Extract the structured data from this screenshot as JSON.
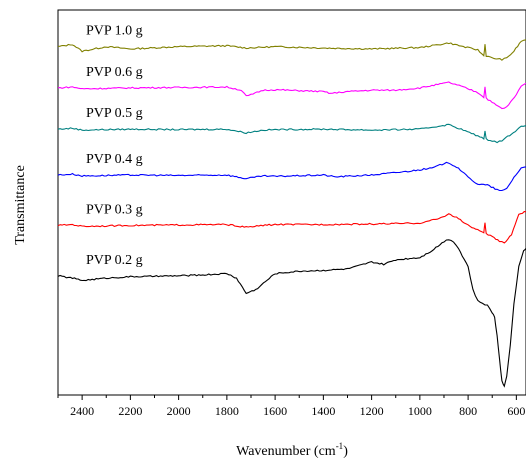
{
  "chart_data": {
    "type": "line",
    "xlabel": "Wavenumber (cm",
    "xlabel_sup": "-1",
    "xlabel_close": ")",
    "ylabel": "Transmittance",
    "xlim": [
      2500,
      560
    ],
    "x_reversed": true,
    "y_ticks": false,
    "grid": false,
    "legend": "inline labels above each trace",
    "x_ticks": [
      2400,
      2200,
      2000,
      1800,
      1600,
      1400,
      1200,
      1000,
      800,
      600
    ],
    "x_tick_labels": [
      "2400",
      "2200",
      "2000",
      "1800",
      "1600",
      "1400",
      "1200",
      "1000",
      "800",
      "600"
    ],
    "series": [
      {
        "name": "PVP 1.0 g",
        "color": "#808000",
        "baseline": 5.0,
        "points": [
          [
            2500,
            5.0
          ],
          [
            2440,
            5.05
          ],
          [
            2400,
            4.9
          ],
          [
            2300,
            5.0
          ],
          [
            2200,
            4.95
          ],
          [
            2000,
            5.0
          ],
          [
            1800,
            5.02
          ],
          [
            1720,
            4.97
          ],
          [
            1600,
            5.0
          ],
          [
            1400,
            4.97
          ],
          [
            1200,
            4.95
          ],
          [
            1000,
            4.98
          ],
          [
            880,
            5.08
          ],
          [
            820,
            5.0
          ],
          [
            760,
            4.93
          ],
          [
            735,
            4.8
          ],
          [
            730,
            5.05
          ],
          [
            725,
            4.8
          ],
          [
            700,
            4.75
          ],
          [
            660,
            4.72
          ],
          [
            640,
            4.75
          ],
          [
            610,
            4.9
          ],
          [
            580,
            5.12
          ],
          [
            560,
            5.15
          ]
        ]
      },
      {
        "name": "PVP 0.6 g",
        "color": "#ff00ff",
        "baseline": 4.1,
        "points": [
          [
            2500,
            4.1
          ],
          [
            2440,
            4.12
          ],
          [
            2400,
            4.08
          ],
          [
            2200,
            4.1
          ],
          [
            2000,
            4.11
          ],
          [
            1800,
            4.12
          ],
          [
            1740,
            4.05
          ],
          [
            1720,
            3.92
          ],
          [
            1700,
            3.95
          ],
          [
            1650,
            4.05
          ],
          [
            1600,
            4.06
          ],
          [
            1400,
            4.02
          ],
          [
            1370,
            3.98
          ],
          [
            1300,
            4.02
          ],
          [
            1200,
            4.05
          ],
          [
            1100,
            4.05
          ],
          [
            1000,
            4.1
          ],
          [
            900,
            4.2
          ],
          [
            880,
            4.22
          ],
          [
            820,
            4.12
          ],
          [
            760,
            4.0
          ],
          [
            735,
            3.9
          ],
          [
            730,
            4.12
          ],
          [
            725,
            3.88
          ],
          [
            700,
            3.78
          ],
          [
            660,
            3.65
          ],
          [
            640,
            3.68
          ],
          [
            600,
            3.95
          ],
          [
            580,
            4.15
          ],
          [
            560,
            4.2
          ]
        ]
      },
      {
        "name": "PVP 0.5 g",
        "color": "#008080",
        "baseline": 3.2,
        "points": [
          [
            2500,
            3.2
          ],
          [
            2440,
            3.22
          ],
          [
            2400,
            3.18
          ],
          [
            2200,
            3.2
          ],
          [
            2000,
            3.19
          ],
          [
            1800,
            3.2
          ],
          [
            1720,
            3.12
          ],
          [
            1650,
            3.18
          ],
          [
            1600,
            3.19
          ],
          [
            1400,
            3.2
          ],
          [
            1200,
            3.18
          ],
          [
            1000,
            3.2
          ],
          [
            880,
            3.3
          ],
          [
            820,
            3.18
          ],
          [
            760,
            3.05
          ],
          [
            735,
            3.0
          ],
          [
            730,
            3.15
          ],
          [
            725,
            2.98
          ],
          [
            700,
            2.95
          ],
          [
            680,
            2.92
          ],
          [
            660,
            2.95
          ],
          [
            620,
            3.1
          ],
          [
            580,
            3.25
          ],
          [
            560,
            3.28
          ]
        ]
      },
      {
        "name": "PVP 0.4 g",
        "color": "#0000ff",
        "baseline": 2.2,
        "points": [
          [
            2500,
            2.2
          ],
          [
            2440,
            2.22
          ],
          [
            2400,
            2.18
          ],
          [
            2200,
            2.2
          ],
          [
            2000,
            2.19
          ],
          [
            1800,
            2.2
          ],
          [
            1720,
            2.12
          ],
          [
            1650,
            2.18
          ],
          [
            1600,
            2.17
          ],
          [
            1400,
            2.2
          ],
          [
            1350,
            2.16
          ],
          [
            1200,
            2.2
          ],
          [
            1050,
            2.28
          ],
          [
            950,
            2.35
          ],
          [
            900,
            2.45
          ],
          [
            880,
            2.47
          ],
          [
            840,
            2.35
          ],
          [
            800,
            2.15
          ],
          [
            760,
            2.0
          ],
          [
            720,
            1.98
          ],
          [
            680,
            1.88
          ],
          [
            660,
            1.85
          ],
          [
            640,
            1.9
          ],
          [
            610,
            2.15
          ],
          [
            580,
            2.35
          ],
          [
            560,
            2.38
          ]
        ]
      },
      {
        "name": "PVP 0.3 g",
        "color": "#ff0000",
        "baseline": 1.1,
        "points": [
          [
            2500,
            1.1
          ],
          [
            2440,
            1.12
          ],
          [
            2400,
            1.08
          ],
          [
            2200,
            1.1
          ],
          [
            2000,
            1.11
          ],
          [
            1800,
            1.12
          ],
          [
            1720,
            1.06
          ],
          [
            1650,
            1.1
          ],
          [
            1600,
            1.12
          ],
          [
            1400,
            1.12
          ],
          [
            1200,
            1.13
          ],
          [
            1000,
            1.15
          ],
          [
            920,
            1.25
          ],
          [
            880,
            1.35
          ],
          [
            840,
            1.25
          ],
          [
            800,
            1.1
          ],
          [
            760,
            1.0
          ],
          [
            735,
            0.95
          ],
          [
            730,
            1.15
          ],
          [
            725,
            0.92
          ],
          [
            700,
            0.85
          ],
          [
            670,
            0.75
          ],
          [
            650,
            0.72
          ],
          [
            620,
            0.9
          ],
          [
            590,
            1.35
          ],
          [
            560,
            1.4
          ]
        ]
      },
      {
        "name": "PVP 0.2 g",
        "color": "#000000",
        "baseline": 0.0,
        "points": [
          [
            2500,
            0.0
          ],
          [
            2440,
            -0.05
          ],
          [
            2400,
            -0.1
          ],
          [
            2300,
            -0.05
          ],
          [
            2200,
            -0.02
          ],
          [
            2000,
            0.0
          ],
          [
            1900,
            0.02
          ],
          [
            1800,
            0.05
          ],
          [
            1760,
            -0.05
          ],
          [
            1720,
            -0.38
          ],
          [
            1680,
            -0.3
          ],
          [
            1600,
            0.05
          ],
          [
            1500,
            0.1
          ],
          [
            1400,
            0.12
          ],
          [
            1300,
            0.15
          ],
          [
            1200,
            0.3
          ],
          [
            1150,
            0.25
          ],
          [
            1100,
            0.35
          ],
          [
            1000,
            0.4
          ],
          [
            950,
            0.55
          ],
          [
            900,
            0.75
          ],
          [
            880,
            0.8
          ],
          [
            860,
            0.75
          ],
          [
            840,
            0.6
          ],
          [
            800,
            0.2
          ],
          [
            780,
            -0.3
          ],
          [
            760,
            -0.55
          ],
          [
            740,
            -0.6
          ],
          [
            720,
            -0.65
          ],
          [
            700,
            -0.8
          ],
          [
            690,
            -0.9
          ],
          [
            680,
            -1.3
          ],
          [
            670,
            -1.8
          ],
          [
            660,
            -2.3
          ],
          [
            650,
            -2.4
          ],
          [
            640,
            -2.2
          ],
          [
            625,
            -1.5
          ],
          [
            610,
            -0.6
          ],
          [
            590,
            0.2
          ],
          [
            570,
            0.55
          ],
          [
            560,
            0.6
          ]
        ]
      }
    ]
  }
}
